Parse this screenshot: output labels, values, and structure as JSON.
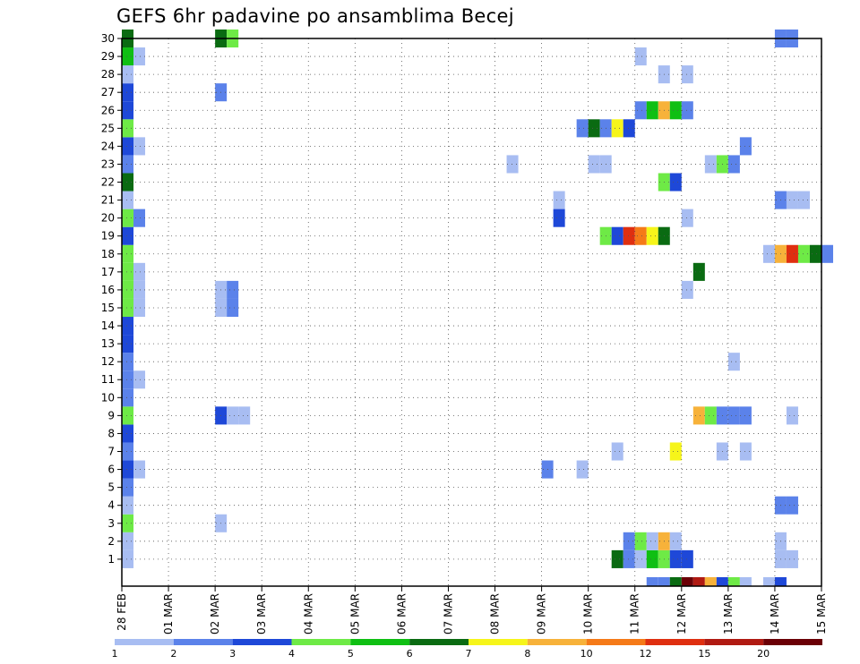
{
  "chart_data": {
    "type": "heatmap",
    "title": "GEFS 6hr padavine po ansamblima Becej",
    "x_tick_labels": [
      "28 FEB",
      "01 MAR",
      "02 MAR",
      "03 MAR",
      "04 MAR",
      "05 MAR",
      "06 MAR",
      "07 MAR",
      "08 MAR",
      "09 MAR",
      "10 MAR",
      "11 MAR",
      "12 MAR",
      "13 MAR",
      "14 MAR",
      "15 MAR"
    ],
    "y_tick_labels": [
      "1",
      "2",
      "3",
      "4",
      "5",
      "6",
      "7",
      "8",
      "9",
      "10",
      "11",
      "12",
      "13",
      "14",
      "15",
      "16",
      "17",
      "18",
      "19",
      "20",
      "21",
      "22",
      "23",
      "24",
      "25",
      "26",
      "27",
      "28",
      "29",
      "30"
    ],
    "ylim": [
      0,
      30
    ],
    "xlim_days": [
      0,
      15
    ],
    "grid": true,
    "legend_placement": "bottom",
    "colorbar": {
      "labels": [
        "1",
        "2",
        "3",
        "4",
        "5",
        "6",
        "7",
        "8",
        "10",
        "12",
        "15",
        "20"
      ],
      "colors": [
        "#a8bdf2",
        "#5b82ea",
        "#1e48d8",
        "#6eea46",
        "#0fbf13",
        "#0a6b12",
        "#f6f51a",
        "#f7b23a",
        "#f57a18",
        "#df2f10",
        "#b01a12",
        "#6b0006"
      ]
    },
    "cells": [
      [
        1,
        0,
        1
      ],
      [
        2,
        0,
        1
      ],
      [
        3,
        0,
        4
      ],
      [
        4,
        0,
        1
      ],
      [
        5,
        0,
        2
      ],
      [
        6,
        0,
        3
      ],
      [
        7,
        0,
        2
      ],
      [
        8,
        0,
        3
      ],
      [
        9,
        0,
        4
      ],
      [
        10,
        0,
        2
      ],
      [
        11,
        0,
        2
      ],
      [
        12,
        0,
        2
      ],
      [
        13,
        0,
        3
      ],
      [
        14,
        0,
        3
      ],
      [
        15,
        0,
        4
      ],
      [
        16,
        0,
        4
      ],
      [
        17,
        0,
        4
      ],
      [
        18,
        0,
        4
      ],
      [
        19,
        0,
        3
      ],
      [
        20,
        0,
        4
      ],
      [
        21,
        0,
        1
      ],
      [
        22,
        0,
        6
      ],
      [
        23,
        0,
        2
      ],
      [
        24,
        0,
        3
      ],
      [
        25,
        0,
        4
      ],
      [
        26,
        0,
        3
      ],
      [
        27,
        0,
        3
      ],
      [
        28,
        0,
        1
      ],
      [
        29,
        0,
        5
      ],
      [
        30,
        0,
        6
      ],
      [
        6,
        1,
        1
      ],
      [
        11,
        1,
        1
      ],
      [
        15,
        1,
        1
      ],
      [
        16,
        1,
        1
      ],
      [
        17,
        1,
        1
      ],
      [
        20,
        1,
        2
      ],
      [
        24,
        1,
        1
      ],
      [
        29,
        1,
        1
      ],
      [
        30,
        8,
        6
      ],
      [
        30,
        9,
        4
      ],
      [
        27,
        8,
        2
      ],
      [
        16,
        8,
        1
      ],
      [
        15,
        8,
        1
      ],
      [
        16,
        9,
        2
      ],
      [
        15,
        9,
        2
      ],
      [
        9,
        8,
        3
      ],
      [
        9,
        9,
        1
      ],
      [
        9,
        10,
        1
      ],
      [
        3,
        8,
        1
      ],
      [
        23,
        33,
        1
      ],
      [
        6,
        36,
        2
      ],
      [
        21,
        37,
        1
      ],
      [
        20,
        37,
        3
      ],
      [
        6,
        39,
        1
      ],
      [
        25,
        39,
        2
      ],
      [
        25,
        40,
        6
      ],
      [
        25,
        41,
        2
      ],
      [
        25,
        42,
        7
      ],
      [
        25,
        43,
        3
      ],
      [
        23,
        40,
        1
      ],
      [
        23,
        41,
        1
      ],
      [
        19,
        41,
        4
      ],
      [
        19,
        42,
        3
      ],
      [
        19,
        43,
        10
      ],
      [
        19,
        44,
        9
      ],
      [
        19,
        45,
        7
      ],
      [
        19,
        46,
        6
      ],
      [
        7,
        42,
        1
      ],
      [
        1,
        42,
        6
      ],
      [
        1,
        43,
        2
      ],
      [
        1,
        44,
        1
      ],
      [
        1,
        45,
        5
      ],
      [
        1,
        46,
        4
      ],
      [
        1,
        47,
        3
      ],
      [
        1,
        48,
        3
      ],
      [
        2,
        43,
        2
      ],
      [
        2,
        44,
        4
      ],
      [
        2,
        45,
        1
      ],
      [
        2,
        46,
        8
      ],
      [
        2,
        47,
        1
      ],
      [
        29,
        44,
        1
      ],
      [
        26,
        44,
        2
      ],
      [
        26,
        45,
        5
      ],
      [
        26,
        46,
        8
      ],
      [
        26,
        47,
        5
      ],
      [
        26,
        48,
        2
      ],
      [
        28,
        46,
        1
      ],
      [
        22,
        46,
        4
      ],
      [
        22,
        47,
        3
      ],
      [
        7,
        47,
        7
      ],
      [
        28,
        48,
        1
      ],
      [
        20,
        48,
        1
      ],
      [
        16,
        48,
        1
      ],
      [
        17,
        49,
        6
      ],
      [
        9,
        49,
        8
      ],
      [
        9,
        50,
        4
      ],
      [
        9,
        51,
        2
      ],
      [
        9,
        52,
        2
      ],
      [
        9,
        53,
        2
      ],
      [
        23,
        50,
        1
      ],
      [
        23,
        51,
        4
      ],
      [
        23,
        52,
        2
      ],
      [
        24,
        53,
        2
      ],
      [
        12,
        52,
        1
      ],
      [
        7,
        51,
        1
      ],
      [
        7,
        53,
        1
      ],
      [
        30,
        56,
        2
      ],
      [
        30,
        57,
        2
      ],
      [
        21,
        56,
        2
      ],
      [
        21,
        57,
        1
      ],
      [
        21,
        58,
        1
      ],
      [
        18,
        55,
        1
      ],
      [
        18,
        56,
        8
      ],
      [
        18,
        57,
        10
      ],
      [
        18,
        58,
        4
      ],
      [
        18,
        59,
        6
      ],
      [
        18,
        60,
        2
      ],
      [
        9,
        57,
        1
      ],
      [
        4,
        56,
        2
      ],
      [
        4,
        57,
        2
      ],
      [
        2,
        56,
        1
      ],
      [
        1,
        56,
        1
      ],
      [
        1,
        57,
        1
      ]
    ],
    "bottom_strip": [
      [
        45,
        2
      ],
      [
        46,
        2
      ],
      [
        47,
        6
      ],
      [
        48,
        12
      ],
      [
        49,
        11
      ],
      [
        50,
        8
      ],
      [
        51,
        3
      ],
      [
        52,
        4
      ],
      [
        53,
        1
      ],
      [
        55,
        1
      ],
      [
        56,
        3
      ]
    ]
  }
}
